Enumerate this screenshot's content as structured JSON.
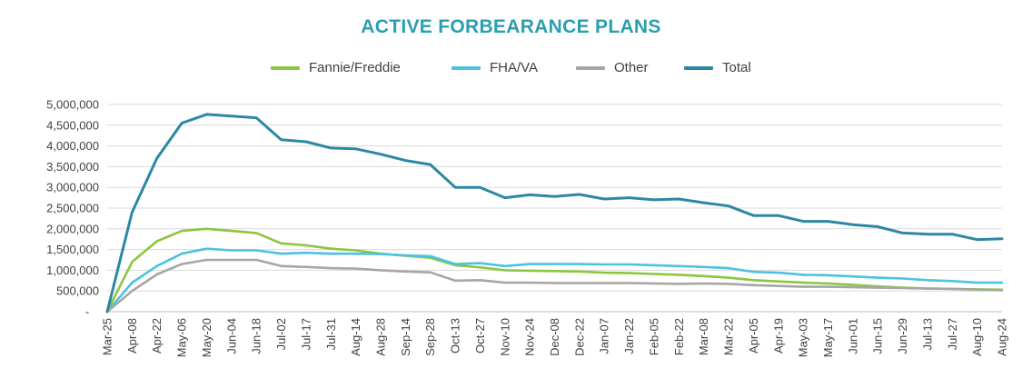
{
  "chart_data": {
    "type": "line",
    "title": "ACTIVE FORBEARANCE PLANS",
    "xlabel": "",
    "ylabel": "",
    "ylim": [
      0,
      5000000
    ],
    "y_ticks": [
      "-",
      "500,000",
      "1,000,000",
      "1,500,000",
      "2,000,000",
      "2,500,000",
      "3,000,000",
      "3,500,000",
      "4,000,000",
      "4,500,000",
      "5,000,000"
    ],
    "categories": [
      "Mar-25",
      "Apr-08",
      "Apr-22",
      "May-06",
      "May-20",
      "Jun-04",
      "Jun-18",
      "Jul-02",
      "Jul-17",
      "Jul-31",
      "Aug-14",
      "Aug-28",
      "Sep-14",
      "Sep-28",
      "Oct-13",
      "Oct-27",
      "Nov-10",
      "Nov-24",
      "Dec-08",
      "Dec-22",
      "Jan-07",
      "Jan-22",
      "Feb-05",
      "Feb-22",
      "Mar-08",
      "Mar-22",
      "Apr-05",
      "Apr-19",
      "May-03",
      "May-17",
      "Jun-01",
      "Jun-15",
      "Jun-29",
      "Jul-13",
      "Jul-27",
      "Aug-10",
      "Aug-24"
    ],
    "grid": true,
    "legend_position": "top-center",
    "series": [
      {
        "name": "Fannie/Freddie",
        "color": "#8cc63f",
        "values": [
          0,
          1200000,
          1700000,
          1950000,
          2000000,
          1950000,
          1900000,
          1650000,
          1600000,
          1520000,
          1480000,
          1400000,
          1350000,
          1300000,
          1120000,
          1070000,
          1000000,
          990000,
          980000,
          970000,
          940000,
          930000,
          910000,
          890000,
          860000,
          820000,
          760000,
          730000,
          700000,
          680000,
          650000,
          610000,
          580000,
          560000,
          550000,
          540000,
          530000
        ]
      },
      {
        "name": "FHA/VA",
        "color": "#4bc2e0",
        "values": [
          0,
          700000,
          1100000,
          1400000,
          1520000,
          1480000,
          1480000,
          1400000,
          1420000,
          1400000,
          1400000,
          1390000,
          1360000,
          1340000,
          1150000,
          1170000,
          1100000,
          1150000,
          1150000,
          1150000,
          1140000,
          1140000,
          1120000,
          1100000,
          1080000,
          1050000,
          960000,
          940000,
          890000,
          880000,
          850000,
          820000,
          800000,
          760000,
          740000,
          700000,
          700000
        ]
      },
      {
        "name": "Other",
        "color": "#a6a6a6",
        "values": [
          0,
          500000,
          900000,
          1150000,
          1250000,
          1250000,
          1250000,
          1100000,
          1080000,
          1050000,
          1040000,
          1000000,
          970000,
          950000,
          750000,
          760000,
          700000,
          700000,
          690000,
          690000,
          690000,
          690000,
          680000,
          670000,
          680000,
          670000,
          640000,
          620000,
          600000,
          600000,
          590000,
          580000,
          570000,
          560000,
          550000,
          530000,
          520000
        ]
      },
      {
        "name": "Total",
        "color": "#2e87a3",
        "values": [
          0,
          2400000,
          3700000,
          4550000,
          4760000,
          4720000,
          4680000,
          4150000,
          4100000,
          3950000,
          3930000,
          3800000,
          3650000,
          3550000,
          3000000,
          3000000,
          2750000,
          2820000,
          2780000,
          2830000,
          2720000,
          2750000,
          2700000,
          2720000,
          2630000,
          2550000,
          2320000,
          2320000,
          2180000,
          2180000,
          2100000,
          2050000,
          1900000,
          1870000,
          1870000,
          1740000,
          1760000
        ]
      }
    ]
  }
}
